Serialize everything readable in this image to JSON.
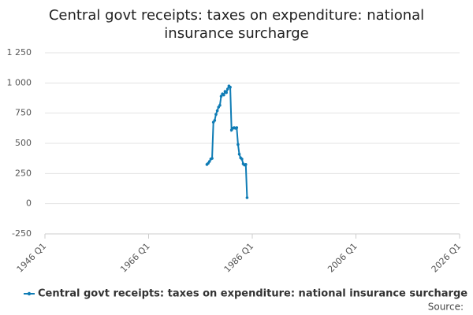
{
  "chart_data": {
    "type": "line",
    "title": "Central govt receipts: taxes on expenditure: national insurance surcharge",
    "x": [
      "1977 Q2",
      "1977 Q3",
      "1977 Q4",
      "1978 Q1",
      "1978 Q2",
      "1978 Q3",
      "1978 Q4",
      "1979 Q1",
      "1979 Q2",
      "1979 Q3",
      "1979 Q4",
      "1980 Q1",
      "1980 Q2",
      "1980 Q3",
      "1980 Q4",
      "1981 Q1",
      "1981 Q2",
      "1981 Q3",
      "1981 Q4",
      "1982 Q1",
      "1982 Q2",
      "1982 Q3",
      "1982 Q4",
      "1983 Q1",
      "1983 Q2",
      "1983 Q3",
      "1983 Q4",
      "1984 Q1",
      "1984 Q2",
      "1984 Q3",
      "1984 Q4",
      "1985 Q1"
    ],
    "series": [
      {
        "name": "Central govt receipts: taxes on expenditure: national insurance surcharge",
        "color": "#0f7cb5",
        "values": [
          325,
          335,
          350,
          370,
          375,
          675,
          690,
          740,
          770,
          800,
          815,
          890,
          910,
          900,
          930,
          920,
          950,
          975,
          965,
          610,
          625,
          630,
          625,
          630,
          490,
          410,
          380,
          370,
          330,
          320,
          325,
          50
        ]
      }
    ],
    "xlim": [
      "1946 Q1",
      "2026 Q1"
    ],
    "xticks": [
      "1946 Q1",
      "1966 Q1",
      "1986 Q1",
      "2006 Q1",
      "2026 Q1"
    ],
    "ylim": [
      -250,
      1250
    ],
    "yticks": [
      -250,
      0,
      250,
      500,
      750,
      {
        "value": 1000,
        "label": "1 000"
      },
      {
        "value": 1250,
        "label": "1 250"
      }
    ],
    "grid": true,
    "legend": "bottom",
    "source": "Source:"
  }
}
